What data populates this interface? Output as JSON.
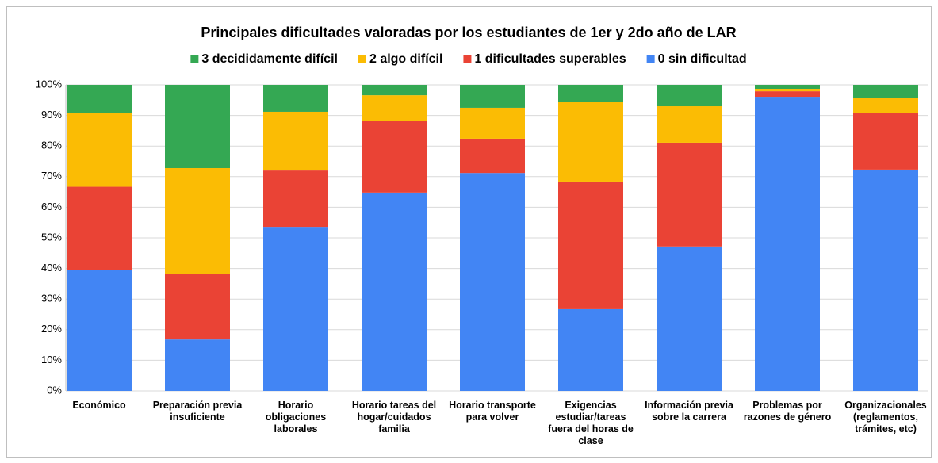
{
  "chart_data": {
    "type": "stacked_bar",
    "title": "Principales dificultades valoradas por los estudiantes  de 1er y 2do año de LAR",
    "categories": [
      "Económico",
      "Preparación previa insuficiente",
      "Horario obligaciones laborales",
      "Horario tareas del hogar/cuidados familia",
      "Horario transporte para volver",
      "Exigencias estudiar/tareas fuera del horas de clase",
      "Información previa sobre la carrera",
      "Problemas por razones de género",
      "Organizacionales (reglamentos, trámites, etc)"
    ],
    "series": [
      {
        "name": "0 sin dificultad",
        "color": "#4285f4",
        "values": [
          39.5,
          16.8,
          53.6,
          64.8,
          71.2,
          26.7,
          47.2,
          96.1,
          72.3
        ]
      },
      {
        "name": "1 dificultades superables",
        "color": "#ea4335",
        "values": [
          27.2,
          21.3,
          18.4,
          23.3,
          11.2,
          41.7,
          33.9,
          1.8,
          18.4
        ]
      },
      {
        "name": "2 algo difícil",
        "color": "#fbbc04",
        "values": [
          24.1,
          34.7,
          19.2,
          8.5,
          10.1,
          25.9,
          11.9,
          0.8,
          4.9
        ]
      },
      {
        "name": "3 decididamente difícil",
        "color": "#34a853",
        "values": [
          9.2,
          27.2,
          8.8,
          3.4,
          7.5,
          5.7,
          7.0,
          1.3,
          4.4
        ]
      }
    ],
    "ylim": [
      0,
      100
    ],
    "yticks": [
      {
        "value": 0,
        "label": "0%"
      },
      {
        "value": 10,
        "label": "10%"
      },
      {
        "value": 20,
        "label": "20%"
      },
      {
        "value": 30,
        "label": "30%"
      },
      {
        "value": 40,
        "label": "40%"
      },
      {
        "value": 50,
        "label": "50%"
      },
      {
        "value": 60,
        "label": "60%"
      },
      {
        "value": 70,
        "label": "70%"
      },
      {
        "value": 80,
        "label": "80%"
      },
      {
        "value": 90,
        "label": "90%"
      },
      {
        "value": 100,
        "label": "100%"
      }
    ],
    "grid": true,
    "legend": "top"
  }
}
